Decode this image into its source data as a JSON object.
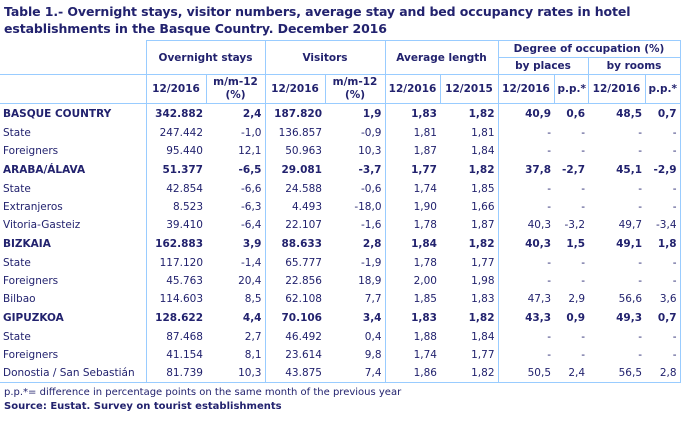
{
  "title": "Table 1.- Overnight stays, visitor numbers, average stay and bed occupancy rates in hotel establishments in the Basque Country. December 2016",
  "headers": {
    "overnight_stays": "Overnight stays",
    "visitors": "Visitors",
    "average_length": "Average length",
    "degree_occupation": "Degree of occupation (%)",
    "by_places": "by places",
    "by_rooms": "by rooms",
    "cols": [
      "12/2016",
      "m/m-12 (%)",
      "12/2016",
      "m/m-12 (%)",
      "12/2016",
      "12/2015",
      "12/2016",
      "p.p.*",
      "12/2016",
      "p.p.*"
    ]
  },
  "rows": [
    {
      "label": "BASQUE COUNTRY",
      "bold": true,
      "values": [
        "342.882",
        "2,4",
        "187.820",
        "1,9",
        "1,83",
        "1,82",
        "40,9",
        "0,6",
        "48,5",
        "0,7"
      ]
    },
    {
      "label": "State",
      "bold": false,
      "values": [
        "247.442",
        "-1,0",
        "136.857",
        "-0,9",
        "1,81",
        "1,81",
        "-",
        "-",
        "-",
        "-"
      ]
    },
    {
      "label": "Foreigners",
      "bold": false,
      "values": [
        "95.440",
        "12,1",
        "50.963",
        "10,3",
        "1,87",
        "1,84",
        "-",
        "-",
        "-",
        "-"
      ]
    },
    {
      "label": "ARABA/ÁLAVA",
      "bold": true,
      "values": [
        "51.377",
        "-6,5",
        "29.081",
        "-3,7",
        "1,77",
        "1,82",
        "37,8",
        "-2,7",
        "45,1",
        "-2,9"
      ]
    },
    {
      "label": "State",
      "bold": false,
      "values": [
        "42.854",
        "-6,6",
        "24.588",
        "-0,6",
        "1,74",
        "1,85",
        "-",
        "-",
        "-",
        "-"
      ]
    },
    {
      "label": "Extranjeros",
      "bold": false,
      "values": [
        "8.523",
        "-6,3",
        "4.493",
        "-18,0",
        "1,90",
        "1,66",
        "-",
        "-",
        "-",
        "-"
      ]
    },
    {
      "label": "Vitoria-Gasteiz",
      "bold": false,
      "values": [
        "39.410",
        "-6,4",
        "22.107",
        "-1,6",
        "1,78",
        "1,87",
        "40,3",
        "-3,2",
        "49,7",
        "-3,4"
      ]
    },
    {
      "label": "BIZKAIA",
      "bold": true,
      "values": [
        "162.883",
        "3,9",
        "88.633",
        "2,8",
        "1,84",
        "1,82",
        "40,3",
        "1,5",
        "49,1",
        "1,8"
      ]
    },
    {
      "label": "State",
      "bold": false,
      "values": [
        "117.120",
        "-1,4",
        "65.777",
        "-1,9",
        "1,78",
        "1,77",
        "-",
        "-",
        "-",
        "-"
      ]
    },
    {
      "label": "Foreigners",
      "bold": false,
      "values": [
        "45.763",
        "20,4",
        "22.856",
        "18,9",
        "2,00",
        "1,98",
        "-",
        "-",
        "-",
        "-"
      ]
    },
    {
      "label": "Bilbao",
      "bold": false,
      "values": [
        "114.603",
        "8,5",
        "62.108",
        "7,7",
        "1,85",
        "1,83",
        "47,3",
        "2,9",
        "56,6",
        "3,6"
      ]
    },
    {
      "label": "GIPUZKOA",
      "bold": true,
      "values": [
        "128.622",
        "4,4",
        "70.106",
        "3,4",
        "1,83",
        "1,82",
        "43,3",
        "0,9",
        "49,3",
        "0,7"
      ]
    },
    {
      "label": "State",
      "bold": false,
      "values": [
        "87.468",
        "2,7",
        "46.492",
        "0,4",
        "1,88",
        "1,84",
        "-",
        "-",
        "-",
        "-"
      ]
    },
    {
      "label": "Foreigners",
      "bold": false,
      "values": [
        "41.154",
        "8,1",
        "23.614",
        "9,8",
        "1,74",
        "1,77",
        "-",
        "-",
        "-",
        "-"
      ]
    },
    {
      "label": "Donostia / San Sebastián",
      "bold": false,
      "values": [
        "81.739",
        "10,3",
        "43.875",
        "7,4",
        "1,86",
        "1,82",
        "50,5",
        "2,4",
        "56,5",
        "2,8"
      ]
    }
  ],
  "footnote": "p.p.*= difference in percentage points on the same month of the previous year",
  "source": "Source: Eustat. Survey on tourist establishments",
  "colors": {
    "text": "#22226e",
    "border": "#99ccff"
  }
}
